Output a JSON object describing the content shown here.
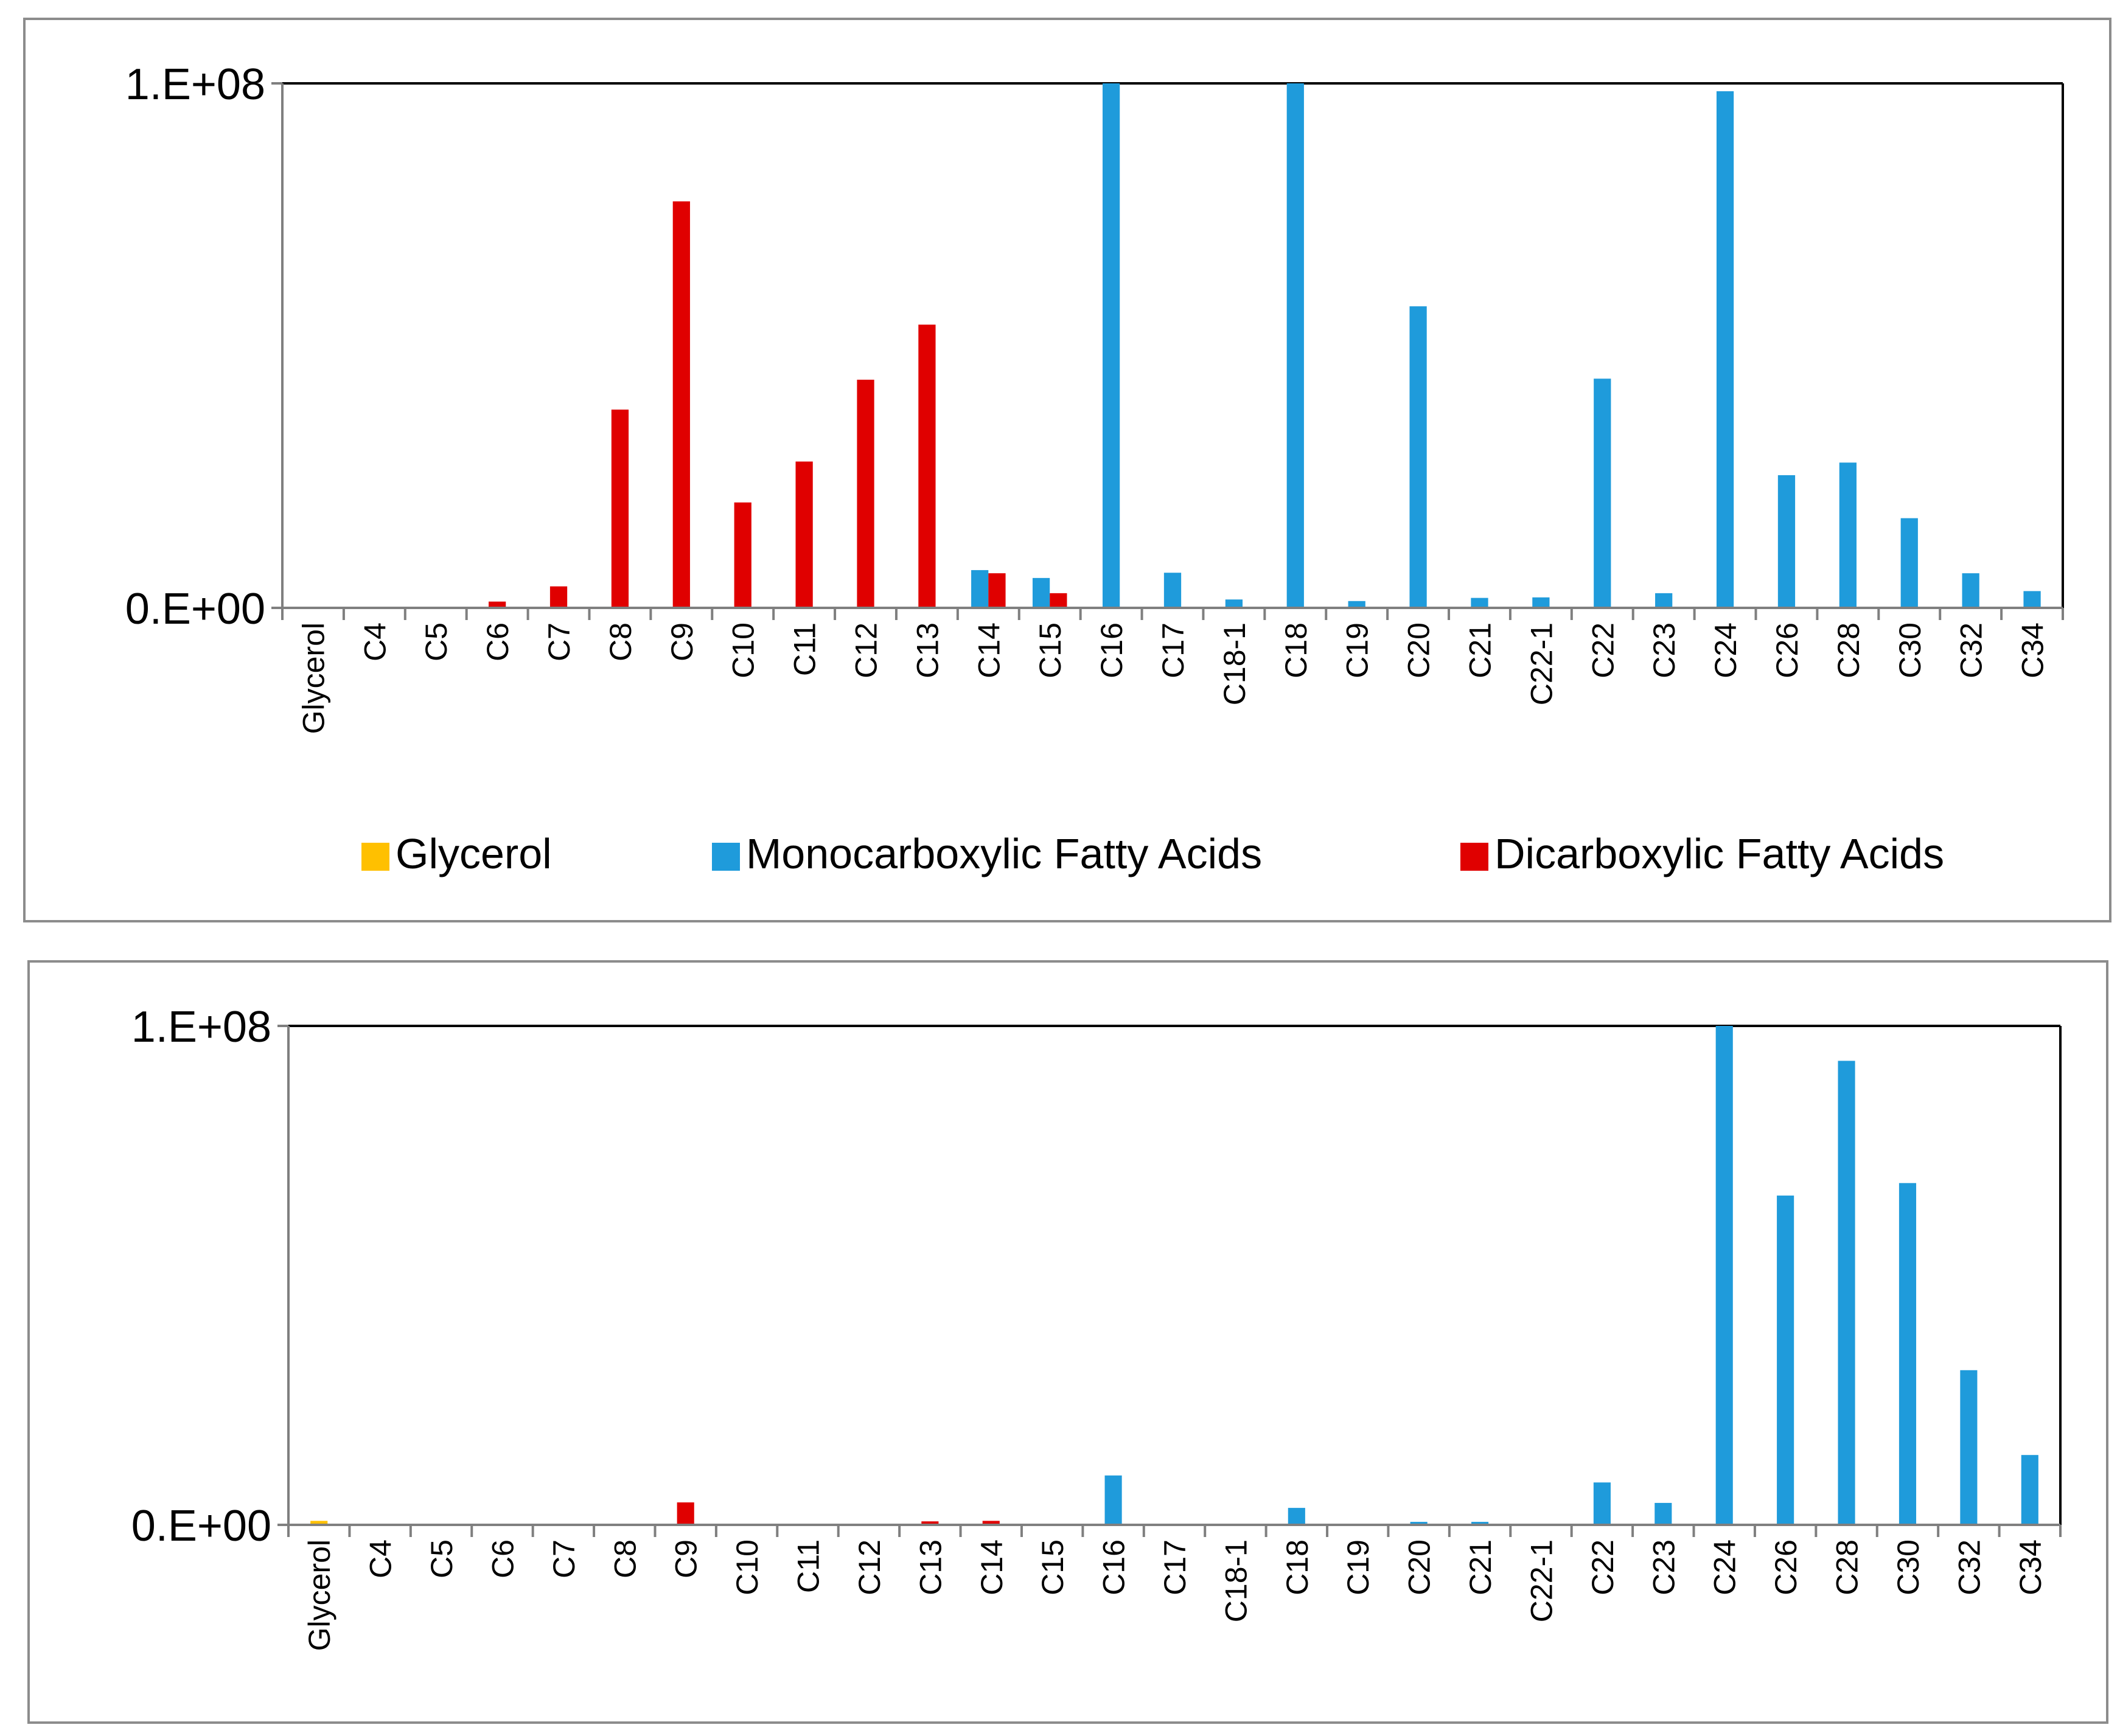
{
  "colors": {
    "glycerol": "#FFC000",
    "mono": "#1F9BDB",
    "di": "#E00000",
    "axis": "#7f7f7f",
    "frame": "#000000"
  },
  "chart_data": [
    {
      "type": "bar",
      "title": "",
      "xlabel": "",
      "ylabel": "",
      "ylim": [
        0,
        100000000
      ],
      "yticks": [
        "0.E+00",
        "1.E+08"
      ],
      "categories": [
        "Glycerol",
        "C4",
        "C5",
        "C6",
        "C7",
        "C8",
        "C9",
        "C10",
        "C11",
        "C12",
        "C13",
        "C14",
        "C15",
        "C16",
        "C17",
        "C18-1",
        "C18",
        "C19",
        "C20",
        "C21",
        "C22-1",
        "C22",
        "C23",
        "C24",
        "C26",
        "C28",
        "C30",
        "C32",
        "C34"
      ],
      "legend": {
        "position": "bottom"
      },
      "series": [
        {
          "name": "Glycerol",
          "key": "glycerol",
          "values": [
            0,
            0,
            0,
            0,
            0,
            0,
            0,
            0,
            0,
            0,
            0,
            0,
            0,
            0,
            0,
            0,
            0,
            0,
            0,
            0,
            0,
            0,
            0,
            0,
            0,
            0,
            0,
            0,
            0
          ]
        },
        {
          "name": "Monocarboxylic Fatty Acids",
          "key": "mono",
          "values": [
            0,
            0,
            0,
            0,
            0,
            0,
            0,
            0,
            0,
            0,
            0,
            7200000,
            5700000,
            100000000,
            6700000,
            1600000,
            100000000,
            1300000,
            57500000,
            1900000,
            2000000,
            43700000,
            2800000,
            98500000,
            25300000,
            27700000,
            17100000,
            6600000,
            3200000
          ]
        },
        {
          "name": "Dicarboxylic Fatty Acids",
          "key": "di",
          "values": [
            0,
            0,
            0,
            1200000,
            4100000,
            37800000,
            77500000,
            20100000,
            27900000,
            43500000,
            54000000,
            6600000,
            2800000,
            0,
            0,
            0,
            0,
            0,
            0,
            0,
            0,
            0,
            0,
            0,
            0,
            0,
            0,
            0,
            0
          ]
        }
      ]
    },
    {
      "type": "bar",
      "title": "",
      "xlabel": "",
      "ylabel": "",
      "ylim": [
        0,
        100000000
      ],
      "yticks": [
        "0.E+00",
        "1.E+08"
      ],
      "categories": [
        "Glycerol",
        "C4",
        "C5",
        "C6",
        "C7",
        "C8",
        "C9",
        "C10",
        "C11",
        "C12",
        "C13",
        "C14",
        "C15",
        "C16",
        "C17",
        "C18-1",
        "C18",
        "C19",
        "C20",
        "C21",
        "C22-1",
        "C22",
        "C23",
        "C24",
        "C26",
        "C28",
        "C30",
        "C32",
        "C34"
      ],
      "series": [
        {
          "name": "Glycerol",
          "key": "glycerol",
          "values": [
            800000,
            0,
            0,
            0,
            0,
            0,
            0,
            0,
            0,
            0,
            0,
            0,
            0,
            0,
            0,
            0,
            0,
            0,
            0,
            0,
            0,
            0,
            0,
            0,
            0,
            0,
            0,
            0,
            0
          ]
        },
        {
          "name": "Monocarboxylic Fatty Acids",
          "key": "mono",
          "values": [
            0,
            0,
            0,
            0,
            0,
            0,
            0,
            0,
            0,
            0,
            0,
            0,
            0,
            9900000,
            0,
            0,
            3400000,
            0,
            600000,
            600000,
            0,
            8500000,
            4400000,
            100000000,
            66000000,
            93000000,
            68500000,
            31000000,
            14000000
          ]
        },
        {
          "name": "Dicarboxylic Fatty Acids",
          "key": "di",
          "values": [
            0,
            0,
            0,
            0,
            0,
            0,
            4500000,
            0,
            0,
            0,
            700000,
            800000,
            0,
            0,
            0,
            0,
            0,
            0,
            0,
            0,
            0,
            0,
            0,
            0,
            0,
            0,
            0,
            0,
            0
          ]
        }
      ]
    }
  ]
}
